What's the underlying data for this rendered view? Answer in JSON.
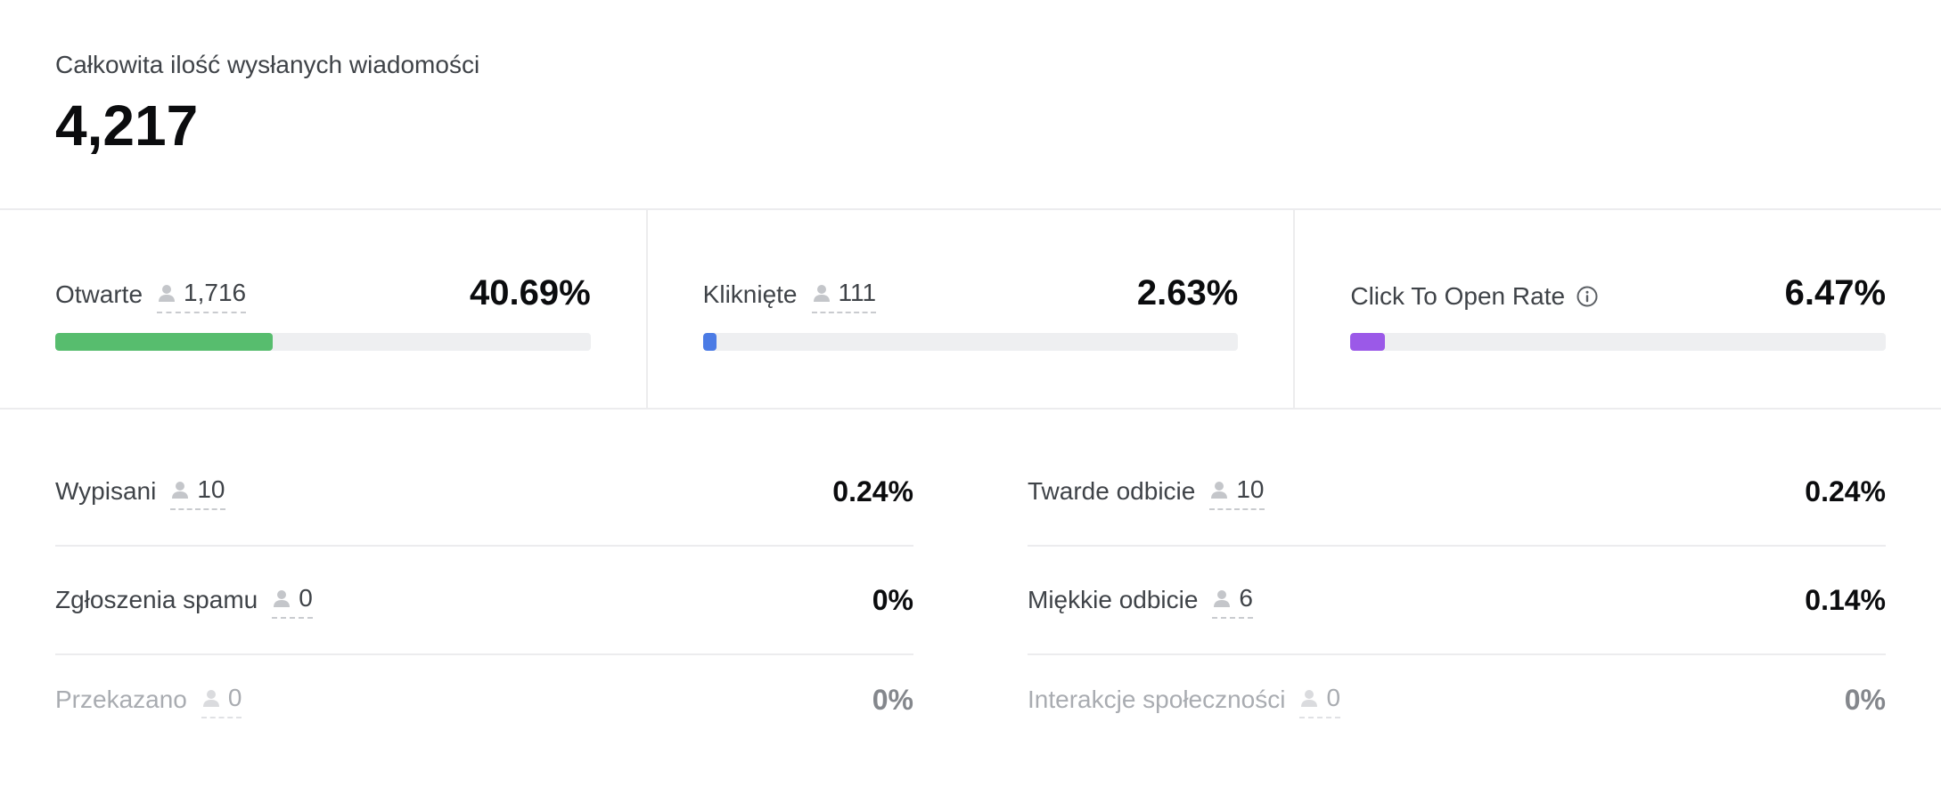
{
  "summary": {
    "label": "Całkowita ilość wysłanych wiadomości",
    "value": "4,217"
  },
  "rates": [
    {
      "label": "Otwarte",
      "count": "1,716",
      "percent": "40.69%",
      "fill_fraction": 0.4069,
      "color": "#57bd6e",
      "has_count": true
    },
    {
      "label": "Kliknięte",
      "count": "111",
      "percent": "2.63%",
      "fill_fraction": 0.0263,
      "color": "#4b7be5",
      "has_count": true
    },
    {
      "label": "Click To Open Rate",
      "count": "",
      "percent": "6.47%",
      "fill_fraction": 0.0647,
      "color": "#9b59e8",
      "has_count": false,
      "icon": "info-icon"
    }
  ],
  "lists": {
    "left": [
      {
        "label": "Wypisani",
        "count": "10",
        "percent": "0.24%",
        "muted": false
      },
      {
        "label": "Zgłoszenia spamu",
        "count": "0",
        "percent": "0%",
        "muted": false
      },
      {
        "label": "Przekazano",
        "count": "0",
        "percent": "0%",
        "muted": true
      }
    ],
    "right": [
      {
        "label": "Twarde odbicie",
        "count": "10",
        "percent": "0.24%",
        "muted": false
      },
      {
        "label": "Miękkie odbicie",
        "count": "6",
        "percent": "0.14%",
        "muted": false
      },
      {
        "label": "Interakcje społeczności",
        "count": "0",
        "percent": "0%",
        "muted": true
      }
    ]
  },
  "icons": {
    "count": "person-icon",
    "info": "info-icon"
  }
}
